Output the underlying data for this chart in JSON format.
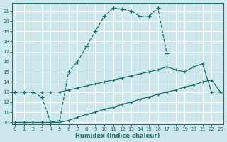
{
  "xlabel": "Humidex (Indice chaleur)",
  "bg_color": "#cce8ec",
  "grid_color": "#b8d8dc",
  "line_color": "#1a6e6a",
  "xlim": [
    -0.3,
    23.3
  ],
  "ylim": [
    9.8,
    21.8
  ],
  "yticks": [
    10,
    11,
    12,
    13,
    14,
    15,
    16,
    17,
    18,
    19,
    20,
    21
  ],
  "xticks": [
    0,
    1,
    2,
    3,
    4,
    5,
    6,
    7,
    8,
    9,
    10,
    11,
    12,
    13,
    14,
    15,
    16,
    17,
    18,
    19,
    20,
    21,
    22,
    23
  ],
  "curve1_x": [
    0,
    1,
    2,
    3,
    4,
    5,
    6,
    7,
    8,
    9,
    10,
    11,
    12,
    13,
    14,
    15,
    16,
    17
  ],
  "curve1_y": [
    13.0,
    13.0,
    13.0,
    12.5,
    10.0,
    10.2,
    15.0,
    16.0,
    17.5,
    19.0,
    20.5,
    21.3,
    21.2,
    21.0,
    20.5,
    20.5,
    21.3,
    16.8
  ],
  "curve2_x": [
    0,
    1,
    2,
    3,
    4,
    5,
    6,
    7,
    8,
    9,
    10,
    11,
    12,
    13,
    14,
    15,
    16,
    17,
    18,
    19,
    20,
    21,
    22,
    23
  ],
  "curve2_y": [
    13.0,
    13.0,
    13.0,
    13.0,
    13.0,
    13.0,
    13.2,
    13.4,
    13.6,
    13.8,
    14.0,
    14.2,
    14.4,
    14.6,
    14.8,
    15.0,
    15.2,
    15.5,
    15.2,
    15.0,
    15.5,
    15.8,
    13.0,
    13.0
  ],
  "curve3_x": [
    0,
    1,
    2,
    3,
    4,
    5,
    6,
    7,
    8,
    9,
    10,
    11,
    12,
    13,
    14,
    15,
    16,
    17,
    18,
    19,
    20,
    21,
    22,
    23
  ],
  "curve3_y": [
    10.0,
    10.0,
    10.0,
    10.0,
    10.0,
    10.0,
    10.2,
    10.5,
    10.8,
    11.0,
    11.3,
    11.5,
    11.8,
    12.0,
    12.3,
    12.5,
    12.8,
    13.0,
    13.2,
    13.5,
    13.7,
    14.0,
    14.2,
    13.0
  ]
}
